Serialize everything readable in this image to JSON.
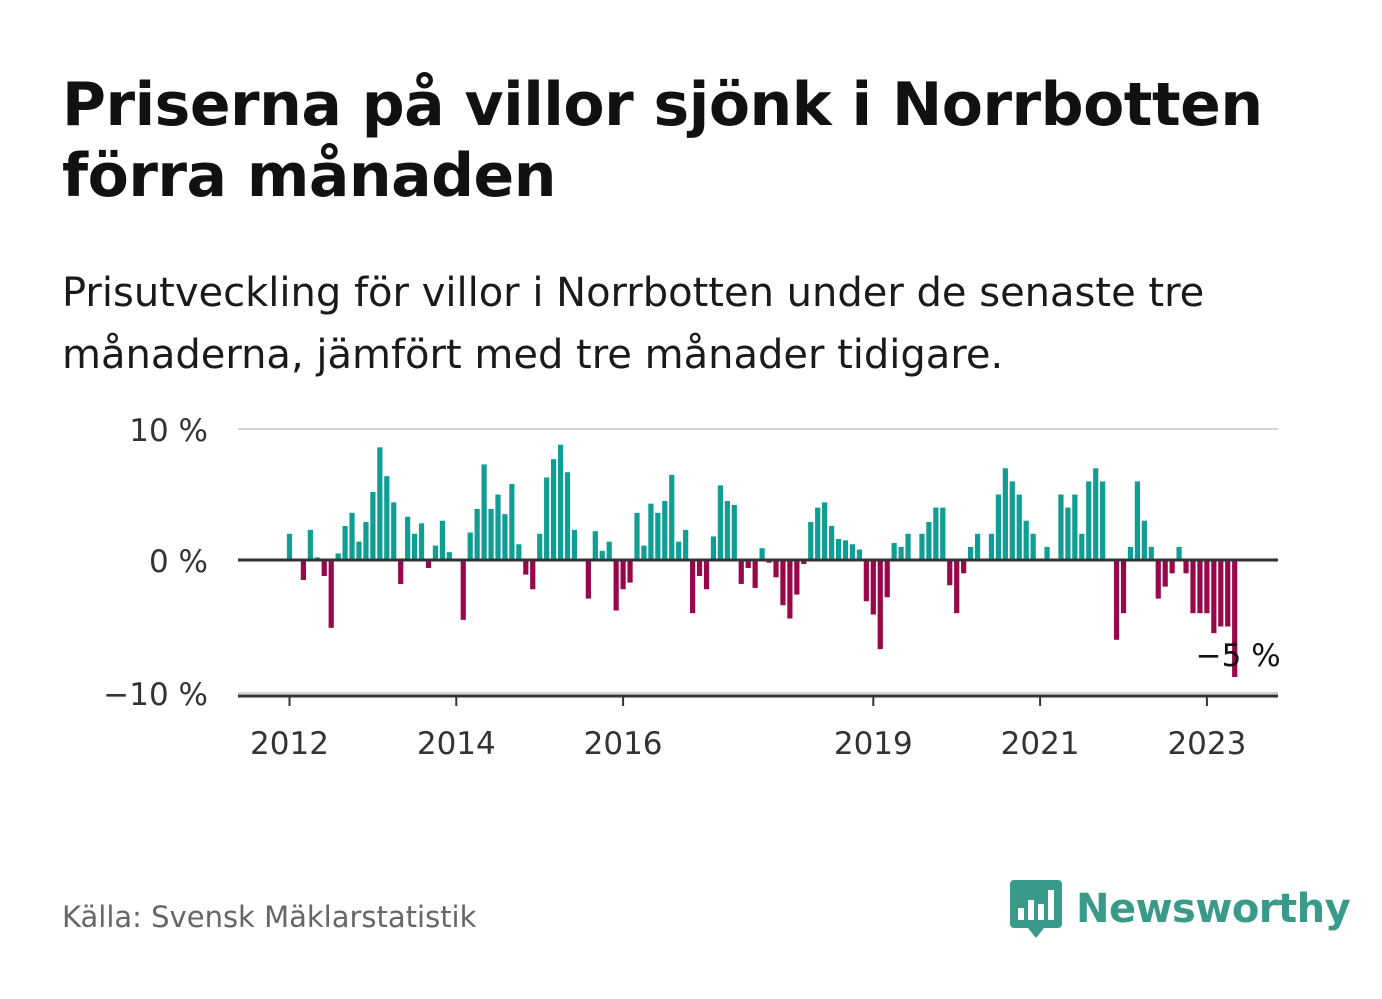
{
  "title": "Priserna på villor sjönk i Norrbotten förra månaden",
  "subtitle": "Prisutveckling för villor i Norrbotten under de senaste tre månaderna, jämfört med tre månader tidigare.",
  "source": "Källa: Svensk Mäklarstatistik",
  "brand": {
    "name": "Newsworthy",
    "icon": "newsworthy-logo-icon"
  },
  "colors": {
    "positive": "#0f9e93",
    "negative": "#99074a",
    "zero_line": "#333333",
    "grid": "#d4d4d4",
    "brand": "#3a9a8a"
  },
  "chart_data": {
    "type": "bar",
    "title": "",
    "xlabel": "",
    "ylabel": "",
    "ylim": [
      -10,
      10
    ],
    "grid": true,
    "yticks": [
      10,
      0,
      -10
    ],
    "ytick_labels": [
      "10 %",
      "0 %",
      "−10 %"
    ],
    "xticks": [
      2012,
      2014,
      2016,
      2019,
      2021,
      2023
    ],
    "xtick_labels": [
      "2012",
      "2014",
      "2016",
      "2019",
      "2021",
      "2023"
    ],
    "start": "2012-01",
    "series": [
      {
        "values": [
          2,
          0,
          -1.5,
          2.3,
          0.2,
          -1.2,
          -5.1,
          0.5,
          2.6,
          3.6,
          1.4,
          2.9,
          5.2,
          8.6,
          6.4,
          4.4,
          -1.8,
          3.3,
          2,
          2.8,
          -0.6,
          1.1,
          3,
          0.6,
          0,
          -4.5,
          2.1,
          3.9,
          7.3,
          3.9,
          5,
          3.5,
          5.8,
          1.2,
          -1.1,
          -2.2,
          2,
          6.3,
          7.7,
          8.8,
          6.7,
          2.3,
          -0.1,
          -2.9,
          2.2,
          0.7,
          1.4,
          -3.8,
          -2.2,
          -1.7,
          3.6,
          1.1,
          4.3,
          3.6,
          4.5,
          6.5,
          1.4,
          2.3,
          -4,
          -1.2,
          -2.2,
          1.8,
          5.7,
          4.5,
          4.2,
          -1.8,
          -0.6,
          -2.1,
          0.9,
          -0.2,
          -1.3,
          -3.4,
          -4.4,
          -2.6,
          -0.3,
          2.9,
          4,
          4.4,
          2.6,
          1.6,
          1.5,
          1.2,
          0.8,
          -3.1,
          -4.1,
          -6.7,
          -2.8,
          1.3,
          1,
          2,
          0,
          2,
          2.9,
          4,
          4,
          -1.9,
          -4,
          -1,
          1,
          2,
          0,
          2,
          5,
          7,
          6,
          5,
          3,
          2,
          0,
          1,
          0,
          5,
          4,
          5,
          2,
          6,
          7,
          6,
          0,
          -6,
          -4,
          1,
          6,
          3,
          1,
          -2.9,
          -2,
          -1,
          1,
          -1,
          -4,
          -4,
          -4,
          -5.5,
          -5,
          -5,
          -8.8
        ]
      }
    ],
    "annotation": {
      "text": "−5 %"
    }
  }
}
